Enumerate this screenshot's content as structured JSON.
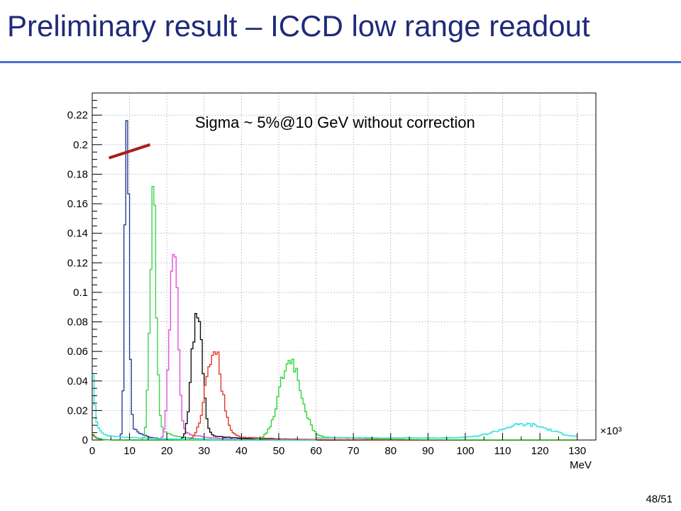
{
  "slide": {
    "title": "Preliminary result – ICCD low range readout",
    "page_number": "48/51"
  },
  "chart_data": {
    "type": "line",
    "xlabel": "MeV",
    "ylabel": "",
    "x_multiplier_label": "×10³",
    "xlim": [
      0,
      135
    ],
    "ylim": [
      0,
      0.235
    ],
    "grid": true,
    "x_ticks": [
      0,
      10,
      20,
      30,
      40,
      50,
      60,
      70,
      80,
      90,
      100,
      110,
      120,
      130
    ],
    "x_tick_labels": [
      "0",
      "10",
      "20",
      "30",
      "40",
      "50",
      "60",
      "70",
      "80",
      "90",
      "100",
      "110",
      "120",
      "130"
    ],
    "y_ticks": [
      0,
      0.02,
      0.04,
      0.06,
      0.08,
      0.1,
      0.12,
      0.14,
      0.16,
      0.18,
      0.2,
      0.22
    ],
    "y_tick_labels": [
      "0",
      "0.02",
      "0.04",
      "0.06",
      "0.08",
      "0.1",
      "0.12",
      "0.14",
      "0.16",
      "0.18",
      "0.2",
      "0.22"
    ],
    "annotation": {
      "text": "Sigma ~ 5%@10 GeV without correction",
      "arrow_color": "#a81e1e",
      "from": [
        4.5,
        0.191
      ],
      "to": [
        15.5,
        0.2
      ]
    },
    "series": [
      {
        "color": "#2b3f96",
        "peak_x": 9.3,
        "peak_y": 0.228,
        "sigma": 0.55
      },
      {
        "color": "#3fd44a",
        "peak_x": 16.3,
        "peak_y": 0.16,
        "sigma": 0.85
      },
      {
        "color": "#e24fe0",
        "peak_x": 21.8,
        "peak_y": 0.131,
        "sigma": 1.05
      },
      {
        "color": "#111111",
        "peak_x": 28.0,
        "peak_y": 0.087,
        "sigma": 1.35
      },
      {
        "color": "#e03a2a",
        "peak_x": 32.5,
        "peak_y": 0.061,
        "sigma": 2.1
      },
      {
        "color": "#2fd43a",
        "peak_x": 53.0,
        "peak_y": 0.052,
        "sigma": 2.9
      },
      {
        "color": "#2fe0e0",
        "peak_x": 116.0,
        "peak_y": 0.009,
        "sigma": 6.5,
        "low_peak_y": 0.06
      }
    ]
  }
}
